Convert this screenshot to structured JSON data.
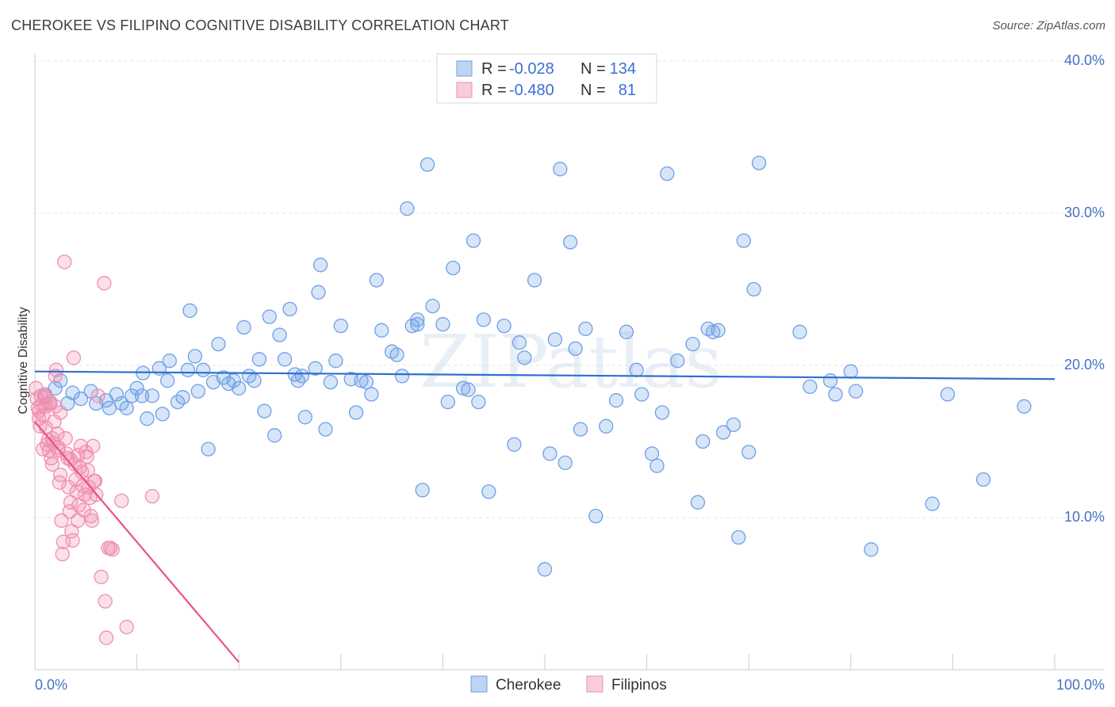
{
  "title": "CHEROKEE VS FILIPINO COGNITIVE DISABILITY CORRELATION CHART",
  "source": "Source: ZipAtlas.com",
  "watermark": "ZIPatlas",
  "chart_data": {
    "type": "scatter",
    "title": "CHEROKEE VS FILIPINO COGNITIVE DISABILITY CORRELATION CHART",
    "xlabel": "",
    "ylabel": "Cognitive Disability",
    "xlim": [
      0,
      100
    ],
    "ylim": [
      0,
      40
    ],
    "x_tick_labels": [
      "0.0%",
      "100.0%"
    ],
    "y_ticks": [
      10,
      20,
      30,
      40
    ],
    "y_tick_labels": [
      "10.0%",
      "20.0%",
      "30.0%",
      "40.0%"
    ],
    "grid": true,
    "legend_position": "top-center",
    "stats": [
      {
        "name": "Cherokee",
        "r_label": "R = ",
        "r": "-0.028",
        "n_label": "N = ",
        "n": "134"
      },
      {
        "name": "Filipinos",
        "r_label": "R = ",
        "r": "-0.480",
        "n_label": "N = ",
        "n": "81"
      }
    ],
    "series": [
      {
        "name": "Cherokee",
        "color": "#6fa0e6",
        "line_color": "#2f6fcf",
        "trend": {
          "x": [
            0,
            100
          ],
          "y": [
            19.6,
            19.1
          ]
        },
        "points": [
          [
            1.0,
            18.0
          ],
          [
            1.5,
            17.5
          ],
          [
            2.0,
            18.5
          ],
          [
            2.5,
            19.0
          ],
          [
            3.2,
            17.5
          ],
          [
            3.7,
            18.2
          ],
          [
            4.5,
            17.8
          ],
          [
            5.5,
            18.3
          ],
          [
            6.0,
            17.5
          ],
          [
            7.0,
            17.7
          ],
          [
            7.3,
            17.2
          ],
          [
            8.0,
            18.1
          ],
          [
            8.5,
            17.5
          ],
          [
            9.0,
            17.2
          ],
          [
            9.5,
            18.0
          ],
          [
            10.0,
            18.5
          ],
          [
            10.5,
            18.0
          ],
          [
            10.6,
            19.5
          ],
          [
            11.0,
            16.5
          ],
          [
            11.5,
            18.0
          ],
          [
            12.2,
            19.8
          ],
          [
            12.5,
            16.8
          ],
          [
            13.0,
            19.0
          ],
          [
            13.2,
            20.3
          ],
          [
            14.0,
            17.6
          ],
          [
            14.5,
            17.9
          ],
          [
            15.0,
            19.7
          ],
          [
            15.2,
            23.6
          ],
          [
            15.7,
            20.6
          ],
          [
            16.0,
            18.3
          ],
          [
            16.5,
            19.7
          ],
          [
            17.0,
            14.5
          ],
          [
            17.5,
            18.9
          ],
          [
            18.0,
            21.4
          ],
          [
            18.5,
            19.2
          ],
          [
            19.0,
            18.8
          ],
          [
            19.5,
            19.0
          ],
          [
            20.0,
            18.5
          ],
          [
            20.5,
            22.5
          ],
          [
            21.0,
            19.3
          ],
          [
            21.5,
            19.0
          ],
          [
            22.0,
            20.4
          ],
          [
            22.5,
            17.0
          ],
          [
            23.0,
            23.2
          ],
          [
            23.5,
            15.4
          ],
          [
            24.0,
            22.0
          ],
          [
            24.5,
            20.4
          ],
          [
            25.0,
            23.7
          ],
          [
            25.5,
            19.4
          ],
          [
            25.8,
            19.0
          ],
          [
            26.2,
            19.3
          ],
          [
            26.5,
            16.6
          ],
          [
            27.5,
            19.8
          ],
          [
            27.8,
            24.8
          ],
          [
            28.0,
            26.6
          ],
          [
            28.5,
            15.8
          ],
          [
            29.0,
            18.9
          ],
          [
            29.5,
            20.3
          ],
          [
            30.0,
            22.6
          ],
          [
            31.0,
            19.1
          ],
          [
            31.5,
            16.9
          ],
          [
            32.0,
            19.0
          ],
          [
            32.5,
            18.9
          ],
          [
            33.0,
            18.1
          ],
          [
            33.5,
            25.6
          ],
          [
            34.0,
            22.3
          ],
          [
            35.0,
            20.9
          ],
          [
            35.5,
            20.7
          ],
          [
            36.0,
            19.3
          ],
          [
            36.5,
            30.3
          ],
          [
            37.0,
            22.6
          ],
          [
            37.5,
            23.0
          ],
          [
            38.0,
            11.8
          ],
          [
            38.5,
            33.2
          ],
          [
            39.0,
            23.9
          ],
          [
            40.0,
            22.7
          ],
          [
            40.5,
            17.6
          ],
          [
            41.0,
            26.4
          ],
          [
            42.0,
            18.5
          ],
          [
            42.5,
            18.4
          ],
          [
            43.0,
            28.2
          ],
          [
            43.5,
            17.6
          ],
          [
            44.0,
            23.0
          ],
          [
            44.5,
            11.7
          ],
          [
            46.0,
            22.6
          ],
          [
            47.0,
            14.8
          ],
          [
            47.5,
            21.5
          ],
          [
            48.0,
            20.5
          ],
          [
            49.0,
            25.6
          ],
          [
            50.0,
            6.6
          ],
          [
            50.5,
            14.2
          ],
          [
            51.0,
            21.7
          ],
          [
            51.5,
            32.9
          ],
          [
            52.0,
            13.6
          ],
          [
            52.5,
            28.1
          ],
          [
            53.0,
            21.1
          ],
          [
            53.5,
            15.8
          ],
          [
            54.0,
            22.4
          ],
          [
            55.0,
            10.1
          ],
          [
            56.0,
            16.0
          ],
          [
            57.0,
            17.7
          ],
          [
            58.0,
            22.2
          ],
          [
            59.0,
            19.7
          ],
          [
            59.5,
            18.1
          ],
          [
            60.5,
            14.2
          ],
          [
            61.0,
            13.4
          ],
          [
            61.5,
            16.9
          ],
          [
            62.0,
            32.6
          ],
          [
            63.0,
            20.3
          ],
          [
            64.5,
            21.4
          ],
          [
            65.0,
            11.0
          ],
          [
            65.5,
            15.0
          ],
          [
            66.0,
            22.4
          ],
          [
            66.5,
            22.2
          ],
          [
            67.0,
            22.3
          ],
          [
            67.5,
            15.6
          ],
          [
            68.5,
            16.1
          ],
          [
            69.0,
            8.7
          ],
          [
            69.5,
            28.2
          ],
          [
            70.0,
            14.3
          ],
          [
            70.5,
            25.0
          ],
          [
            71.0,
            33.3
          ],
          [
            75.0,
            22.2
          ],
          [
            76.0,
            18.6
          ],
          [
            78.0,
            19.0
          ],
          [
            78.5,
            18.1
          ],
          [
            80.0,
            19.6
          ],
          [
            80.5,
            18.3
          ],
          [
            82.0,
            7.9
          ],
          [
            88.0,
            10.9
          ],
          [
            89.5,
            18.1
          ],
          [
            93.0,
            12.5
          ],
          [
            97.0,
            17.3
          ],
          [
            37.5,
            22.7
          ]
        ]
      },
      {
        "name": "Filipinos",
        "color": "#f08fb0",
        "line_color": "#e8528a",
        "trend": {
          "x": [
            0,
            20
          ],
          "y": [
            16.3,
            0.5
          ]
        },
        "points": [
          [
            0.1,
            18.5
          ],
          [
            0.2,
            17.8
          ],
          [
            0.3,
            17.2
          ],
          [
            0.4,
            16.5
          ],
          [
            0.5,
            16.0
          ],
          [
            0.6,
            18.0
          ],
          [
            0.7,
            17.4
          ],
          [
            0.8,
            16.7
          ],
          [
            0.9,
            17.9
          ],
          [
            1.0,
            17.3
          ],
          [
            1.1,
            15.9
          ],
          [
            1.2,
            14.8
          ],
          [
            1.3,
            15.1
          ],
          [
            1.4,
            14.4
          ],
          [
            1.5,
            17.6
          ],
          [
            1.6,
            13.9
          ],
          [
            1.7,
            15.2
          ],
          [
            1.8,
            14.9
          ],
          [
            1.9,
            16.3
          ],
          [
            2.0,
            19.3
          ],
          [
            2.1,
            19.7
          ],
          [
            2.2,
            15.5
          ],
          [
            2.3,
            14.6
          ],
          [
            2.4,
            12.3
          ],
          [
            2.5,
            12.8
          ],
          [
            2.6,
            9.8
          ],
          [
            2.7,
            7.6
          ],
          [
            2.8,
            8.4
          ],
          [
            2.9,
            26.8
          ],
          [
            3.0,
            15.2
          ],
          [
            3.1,
            14.2
          ],
          [
            3.2,
            13.9
          ],
          [
            3.3,
            12.0
          ],
          [
            3.4,
            10.4
          ],
          [
            3.5,
            11.0
          ],
          [
            3.6,
            9.1
          ],
          [
            3.7,
            8.5
          ],
          [
            3.8,
            20.5
          ],
          [
            3.9,
            13.5
          ],
          [
            4.0,
            12.5
          ],
          [
            4.1,
            11.7
          ],
          [
            4.2,
            9.8
          ],
          [
            4.3,
            10.8
          ],
          [
            4.4,
            13.3
          ],
          [
            4.5,
            14.7
          ],
          [
            4.6,
            13.0
          ],
          [
            4.7,
            12.1
          ],
          [
            4.8,
            10.5
          ],
          [
            4.9,
            11.5
          ],
          [
            5.0,
            14.3
          ],
          [
            5.1,
            14.0
          ],
          [
            5.2,
            13.1
          ],
          [
            5.3,
            12.0
          ],
          [
            5.4,
            11.3
          ],
          [
            5.5,
            10.1
          ],
          [
            5.6,
            9.8
          ],
          [
            5.7,
            14.7
          ],
          [
            5.8,
            12.4
          ],
          [
            5.9,
            12.4
          ],
          [
            6.0,
            11.5
          ],
          [
            6.2,
            18.0
          ],
          [
            6.5,
            6.1
          ],
          [
            6.8,
            25.4
          ],
          [
            6.9,
            4.5
          ],
          [
            7.0,
            2.1
          ],
          [
            7.2,
            8.0
          ],
          [
            7.4,
            8.0
          ],
          [
            7.6,
            7.9
          ],
          [
            8.5,
            11.1
          ],
          [
            9.0,
            2.8
          ],
          [
            11.5,
            11.4
          ],
          [
            1.0,
            18.1
          ],
          [
            1.5,
            17.5
          ],
          [
            2.0,
            17.3
          ],
          [
            2.5,
            16.9
          ],
          [
            0.8,
            14.5
          ],
          [
            1.7,
            13.5
          ],
          [
            3.5,
            13.8
          ],
          [
            4.2,
            14.1
          ],
          [
            0.4,
            17.0
          ],
          [
            2.3,
            14.4
          ]
        ]
      }
    ]
  }
}
